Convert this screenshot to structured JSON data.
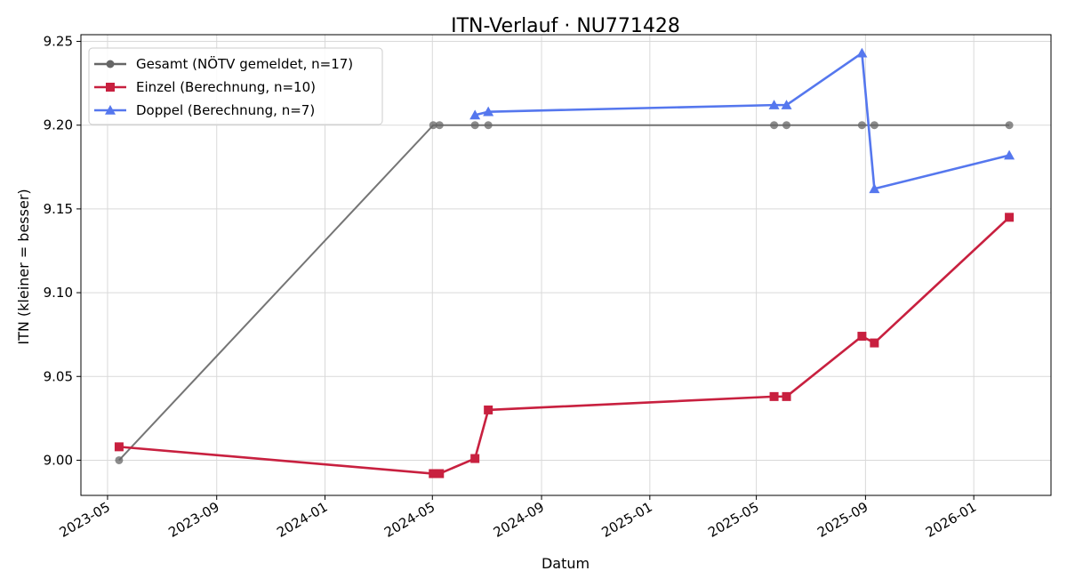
{
  "chart_data": {
    "type": "line",
    "title": "ITN-Verlauf · NU771428",
    "xlabel": "Datum",
    "ylabel": "ITN  (kleiner = besser)",
    "x_ticks": [
      "2023-05",
      "2023-09",
      "2024-01",
      "2024-05",
      "2024-09",
      "2025-01",
      "2025-05",
      "2025-09",
      "2026-01"
    ],
    "y_ticks": [
      "9.00",
      "9.05",
      "9.10",
      "9.15",
      "9.20",
      "9.25"
    ],
    "xlim": [
      "2023-04-01",
      "2026-03-29"
    ],
    "ylim": [
      8.979,
      9.254
    ],
    "grid": true,
    "legend_position": "top-left",
    "series": [
      {
        "name": "Gesamt (NÖTV gemeldet, n=17)",
        "color": "#666666",
        "marker": "circle",
        "points": [
          {
            "x": "2023-05-14",
            "y": 9.0
          },
          {
            "x": "2024-05-02",
            "y": 9.2
          },
          {
            "x": "2024-05-09",
            "y": 9.2
          },
          {
            "x": "2024-06-18",
            "y": 9.2
          },
          {
            "x": "2024-07-03",
            "y": 9.2
          },
          {
            "x": "2025-05-21",
            "y": 9.2
          },
          {
            "x": "2025-06-04",
            "y": 9.2
          },
          {
            "x": "2025-08-28",
            "y": 9.2
          },
          {
            "x": "2025-09-11",
            "y": 9.2
          },
          {
            "x": "2026-02-10",
            "y": 9.2
          }
        ]
      },
      {
        "name": "Einzel (Berechnung, n=10)",
        "color": "#c8203f",
        "marker": "square",
        "points": [
          {
            "x": "2023-05-14",
            "y": 9.008
          },
          {
            "x": "2024-05-02",
            "y": 8.992
          },
          {
            "x": "2024-05-09",
            "y": 8.992
          },
          {
            "x": "2024-06-18",
            "y": 9.001
          },
          {
            "x": "2024-07-03",
            "y": 9.03
          },
          {
            "x": "2025-05-21",
            "y": 9.038
          },
          {
            "x": "2025-06-04",
            "y": 9.038
          },
          {
            "x": "2025-08-28",
            "y": 9.074
          },
          {
            "x": "2025-09-11",
            "y": 9.07
          },
          {
            "x": "2026-02-10",
            "y": 9.145
          }
        ]
      },
      {
        "name": "Doppel (Berechnung, n=7)",
        "color": "#5577ee",
        "marker": "triangle",
        "points": [
          {
            "x": "2024-06-18",
            "y": 9.206
          },
          {
            "x": "2024-07-03",
            "y": 9.208
          },
          {
            "x": "2025-05-21",
            "y": 9.212
          },
          {
            "x": "2025-06-04",
            "y": 9.212
          },
          {
            "x": "2025-08-28",
            "y": 9.243
          },
          {
            "x": "2025-09-11",
            "y": 9.162
          },
          {
            "x": "2026-02-10",
            "y": 9.182
          }
        ]
      }
    ]
  }
}
